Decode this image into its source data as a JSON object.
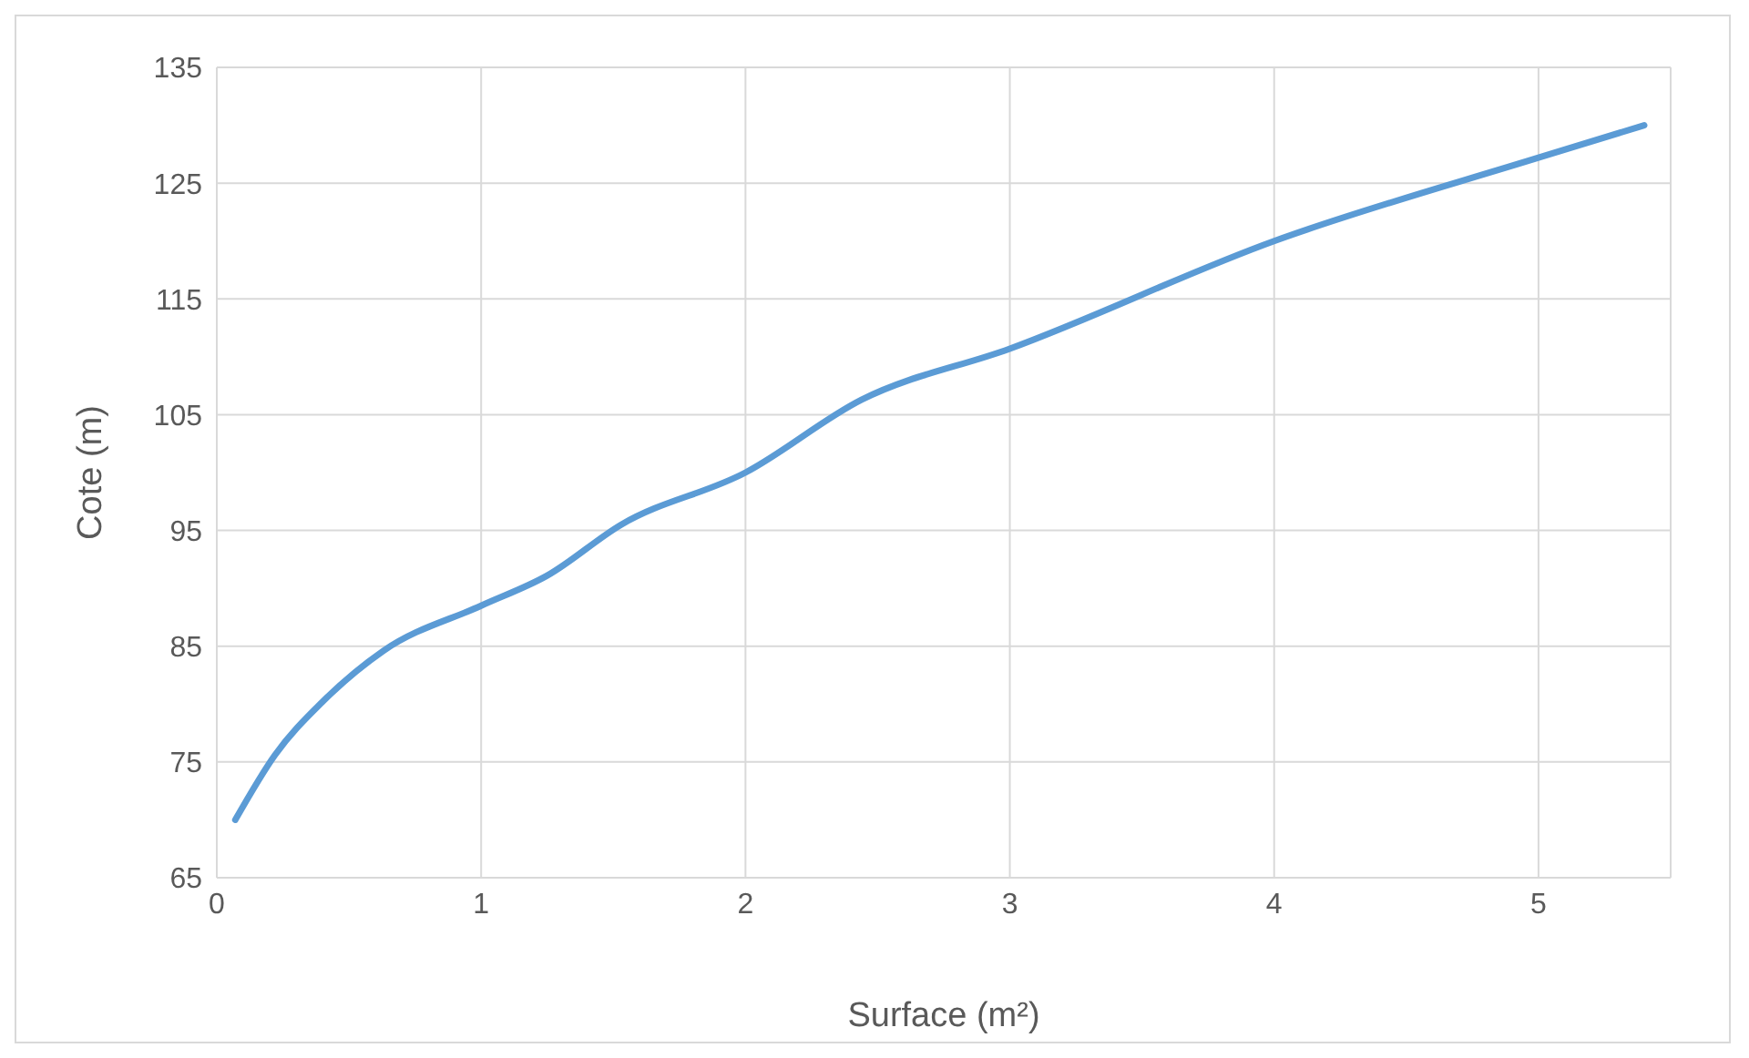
{
  "chart_data": {
    "type": "line",
    "xlabel": "Surface (m²)",
    "ylabel": "Cote (m)",
    "x": [
      0.07,
      0.22,
      0.4,
      0.63,
      1.0,
      1.25,
      1.53,
      2.0,
      2.44,
      3.0,
      4.0,
      5.0,
      5.4
    ],
    "series": [
      {
        "color": "#5b9bd5",
        "values": [
          70,
          75.6,
          80.2,
          84.6,
          88.5,
          91.1,
          95.5,
          100,
          106.3,
          110.7,
          120,
          127.2,
          130
        ]
      }
    ],
    "xlim": [
      0,
      5.5
    ],
    "xticks": [
      0,
      1,
      2,
      3,
      4,
      5
    ],
    "ylim": [
      65,
      135
    ],
    "yticks": [
      65,
      75,
      85,
      95,
      105,
      115,
      125,
      135
    ],
    "grid": true,
    "marker": "none",
    "line_style": "solid",
    "legend": false
  }
}
